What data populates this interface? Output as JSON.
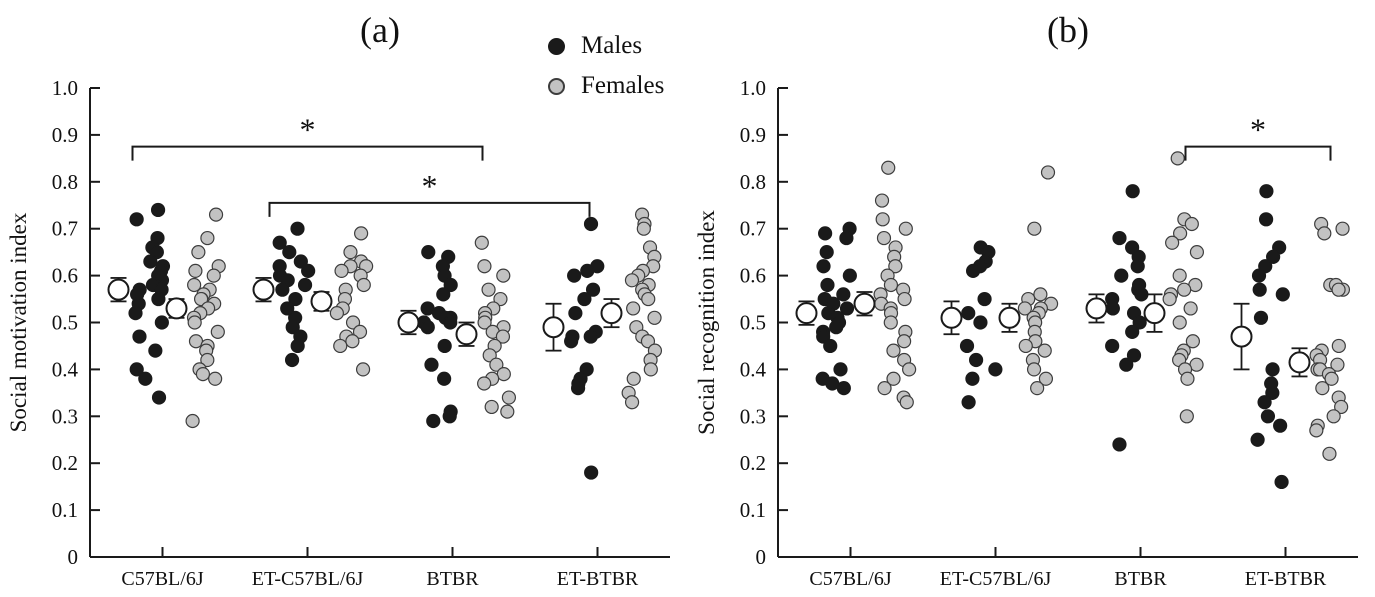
{
  "figure": {
    "background": "#ffffff",
    "colors": {
      "axis": "#1a1a1a",
      "male": "#1a1a1a",
      "female": "#c2c2c2",
      "female_stroke": "#3d3d3d"
    },
    "legend": {
      "items": [
        {
          "label": "Males",
          "color": "#1a1a1a"
        },
        {
          "label": "Females",
          "color": "#c2c2c2"
        }
      ]
    }
  },
  "chart_data": [
    {
      "type": "scatter",
      "title": "(a)",
      "ylabel": "Social motivation index",
      "ylim": [
        0,
        1.0
      ],
      "yticks": [
        0,
        0.1,
        0.2,
        0.3,
        0.4,
        0.5,
        0.6,
        0.7,
        0.8,
        0.9,
        1.0
      ],
      "ytick_labels": [
        "0",
        "0.1",
        "0.2",
        "0.3",
        "0.4",
        "0.5",
        "0.6",
        "0.7",
        "0.8",
        "0.9",
        "1.0"
      ],
      "categories": [
        "C57BL/6J",
        "ET-C57BL/6J",
        "BTBR",
        "ET-BTBR"
      ],
      "grid": false,
      "series": [
        {
          "name": "Males",
          "groups": [
            [
              0.74,
              0.72,
              0.68,
              0.66,
              0.65,
              0.63,
              0.62,
              0.61,
              0.6,
              0.59,
              0.58,
              0.58,
              0.57,
              0.57,
              0.56,
              0.55,
              0.54,
              0.52,
              0.5,
              0.47,
              0.44,
              0.4,
              0.38,
              0.34
            ],
            [
              0.7,
              0.67,
              0.65,
              0.63,
              0.62,
              0.61,
              0.6,
              0.59,
              0.58,
              0.57,
              0.55,
              0.53,
              0.51,
              0.49,
              0.47,
              0.45,
              0.42
            ],
            [
              0.65,
              0.64,
              0.62,
              0.6,
              0.58,
              0.56,
              0.53,
              0.52,
              0.51,
              0.51,
              0.5,
              0.5,
              0.49,
              0.45,
              0.41,
              0.38,
              0.31,
              0.3,
              0.29
            ],
            [
              0.71,
              0.62,
              0.61,
              0.6,
              0.57,
              0.55,
              0.52,
              0.48,
              0.47,
              0.47,
              0.46,
              0.4,
              0.38,
              0.37,
              0.36,
              0.18
            ]
          ],
          "means": [
            0.57,
            0.57,
            0.5,
            0.49
          ],
          "sems": [
            0.025,
            0.025,
            0.025,
            0.05
          ]
        },
        {
          "name": "Females",
          "groups": [
            [
              0.73,
              0.68,
              0.65,
              0.62,
              0.61,
              0.6,
              0.58,
              0.57,
              0.56,
              0.55,
              0.55,
              0.54,
              0.53,
              0.52,
              0.51,
              0.5,
              0.48,
              0.46,
              0.45,
              0.44,
              0.42,
              0.4,
              0.39,
              0.38,
              0.29
            ],
            [
              0.69,
              0.65,
              0.63,
              0.62,
              0.62,
              0.61,
              0.6,
              0.58,
              0.57,
              0.55,
              0.53,
              0.52,
              0.5,
              0.48,
              0.47,
              0.46,
              0.45,
              0.4
            ],
            [
              0.67,
              0.62,
              0.6,
              0.57,
              0.55,
              0.53,
              0.52,
              0.51,
              0.5,
              0.49,
              0.48,
              0.47,
              0.45,
              0.43,
              0.41,
              0.39,
              0.38,
              0.37,
              0.34,
              0.32,
              0.31
            ],
            [
              0.73,
              0.71,
              0.7,
              0.66,
              0.64,
              0.62,
              0.61,
              0.6,
              0.59,
              0.58,
              0.57,
              0.56,
              0.55,
              0.53,
              0.51,
              0.49,
              0.47,
              0.46,
              0.44,
              0.42,
              0.4,
              0.38,
              0.35,
              0.33
            ]
          ],
          "means": [
            0.53,
            0.545,
            0.475,
            0.52
          ],
          "sems": [
            0.02,
            0.02,
            0.025,
            0.03
          ]
        }
      ],
      "significance": [
        {
          "group1": 0,
          "group2": 2,
          "y": 0.875,
          "label": "*",
          "x1_offset": -30,
          "x2_offset": 30
        },
        {
          "group1": 1,
          "group2": 3,
          "y": 0.755,
          "label": "*",
          "x1_offset": -38,
          "x2_offset": -8
        }
      ]
    },
    {
      "type": "scatter",
      "title": "(b)",
      "ylabel": "Social recognition index",
      "ylim": [
        0,
        1.0
      ],
      "yticks": [
        0,
        0.1,
        0.2,
        0.3,
        0.4,
        0.5,
        0.6,
        0.7,
        0.8,
        0.9,
        1.0
      ],
      "ytick_labels": [
        "0",
        "0.1",
        "0.2",
        "0.3",
        "0.4",
        "0.5",
        "0.6",
        "0.7",
        "0.8",
        "0.9",
        "1.0"
      ],
      "categories": [
        "C57BL/6J",
        "ET-C57BL/6J",
        "BTBR",
        "ET-BTBR"
      ],
      "grid": false,
      "series": [
        {
          "name": "Males",
          "groups": [
            [
              0.7,
              0.69,
              0.68,
              0.65,
              0.62,
              0.6,
              0.58,
              0.56,
              0.55,
              0.54,
              0.53,
              0.52,
              0.51,
              0.5,
              0.49,
              0.48,
              0.47,
              0.45,
              0.4,
              0.38,
              0.37,
              0.36
            ],
            [
              0.66,
              0.65,
              0.63,
              0.62,
              0.61,
              0.55,
              0.52,
              0.5,
              0.45,
              0.42,
              0.4,
              0.38,
              0.33
            ],
            [
              0.78,
              0.68,
              0.66,
              0.64,
              0.62,
              0.6,
              0.58,
              0.57,
              0.56,
              0.55,
              0.53,
              0.52,
              0.5,
              0.48,
              0.45,
              0.43,
              0.41,
              0.24
            ],
            [
              0.78,
              0.72,
              0.66,
              0.64,
              0.62,
              0.6,
              0.57,
              0.56,
              0.51,
              0.4,
              0.37,
              0.35,
              0.33,
              0.3,
              0.28,
              0.25,
              0.16
            ]
          ],
          "means": [
            0.52,
            0.51,
            0.53,
            0.47
          ],
          "sems": [
            0.025,
            0.035,
            0.03,
            0.07
          ]
        },
        {
          "name": "Females",
          "groups": [
            [
              0.83,
              0.76,
              0.72,
              0.7,
              0.68,
              0.66,
              0.64,
              0.62,
              0.6,
              0.58,
              0.57,
              0.56,
              0.55,
              0.54,
              0.53,
              0.52,
              0.5,
              0.48,
              0.46,
              0.44,
              0.42,
              0.4,
              0.38,
              0.36,
              0.34,
              0.33
            ],
            [
              0.82,
              0.7,
              0.56,
              0.55,
              0.54,
              0.53,
              0.53,
              0.52,
              0.51,
              0.5,
              0.48,
              0.46,
              0.45,
              0.44,
              0.42,
              0.4,
              0.38,
              0.36
            ],
            [
              0.85,
              0.72,
              0.71,
              0.69,
              0.67,
              0.65,
              0.6,
              0.58,
              0.57,
              0.56,
              0.55,
              0.53,
              0.5,
              0.46,
              0.44,
              0.43,
              0.42,
              0.41,
              0.4,
              0.38,
              0.3
            ],
            [
              0.71,
              0.7,
              0.69,
              0.58,
              0.58,
              0.57,
              0.57,
              0.45,
              0.44,
              0.43,
              0.42,
              0.41,
              0.4,
              0.4,
              0.39,
              0.38,
              0.36,
              0.34,
              0.32,
              0.3,
              0.28,
              0.27,
              0.22
            ]
          ],
          "means": [
            0.54,
            0.51,
            0.52,
            0.415
          ],
          "sems": [
            0.025,
            0.03,
            0.04,
            0.03
          ]
        }
      ],
      "significance": [
        {
          "group1": 2,
          "group2": 3,
          "y": 0.875,
          "label": "*",
          "x1_offset": 45,
          "x2_offset": 45
        }
      ]
    }
  ]
}
